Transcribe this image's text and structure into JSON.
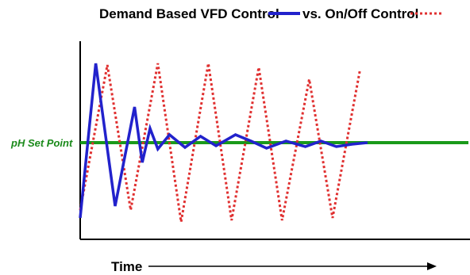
{
  "chart_data": {
    "type": "line",
    "title_part1": "Demand Based VFD Control",
    "title_part2": "vs. On/Off Control",
    "xlabel": "Time",
    "ylabel": "",
    "setpoint_label": "pH Set Point",
    "setpoint": 0,
    "ylim": [
      -1.2,
      1.2
    ],
    "xlim": [
      0,
      100
    ],
    "grid": false,
    "colors": {
      "vfd": "#2222cc",
      "onoff": "#e03030",
      "setpoint": "#1a9a1a",
      "axis": "#000000"
    },
    "series": [
      {
        "key": "vfd",
        "x": [
          0,
          4,
          9,
          14,
          16,
          18,
          20,
          23,
          27,
          31,
          35,
          40,
          44,
          48,
          53,
          58,
          62,
          66,
          70,
          74
        ],
        "y": [
          -0.95,
          1.0,
          -0.8,
          0.45,
          -0.25,
          0.18,
          -0.08,
          0.1,
          -0.06,
          0.08,
          -0.04,
          0.1,
          0.02,
          -0.07,
          0.02,
          -0.05,
          0.02,
          -0.05,
          -0.02,
          0.0
        ]
      },
      {
        "key": "onoff",
        "x": [
          0,
          7,
          13,
          20,
          26,
          33,
          39,
          46,
          52,
          59,
          65,
          72
        ],
        "y": [
          -0.85,
          0.98,
          -0.85,
          1.0,
          -1.0,
          1.0,
          -0.98,
          0.95,
          -0.98,
          0.8,
          -0.95,
          0.9
        ]
      }
    ]
  }
}
